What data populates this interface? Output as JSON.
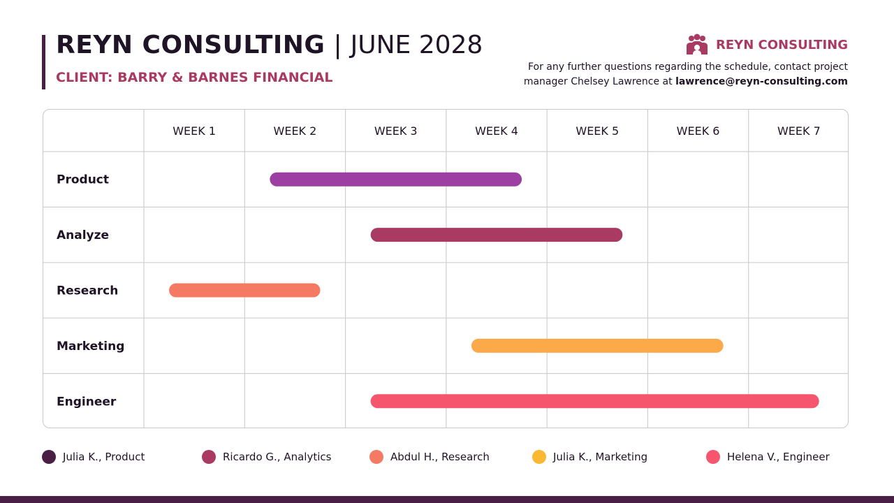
{
  "header": {
    "company": "REYN CONSULTING",
    "separator": "|",
    "date": "JUNE 2028",
    "client": "CLIENT: BARRY & BARNES FINANCIAL",
    "logo_text": "REYN CONSULTING",
    "contact_text": "For any further questions regarding the schedule, contact project manager Chelsey Lawrence at ",
    "contact_email": "lawrence@reyn-consulting.com"
  },
  "colors": {
    "primary_dark": "#4a1f46",
    "accent": "#a93b63",
    "grid_line": "#cfcfcf",
    "text": "#1f1326"
  },
  "chart_data": {
    "type": "gantt",
    "columns": [
      "WEEK 1",
      "WEEK 2",
      "WEEK 3",
      "WEEK 4",
      "WEEK 5",
      "WEEK 6",
      "WEEK 7"
    ],
    "tasks": [
      {
        "label": "Product",
        "start": 2.25,
        "end": 4.75,
        "color": "#9c3ea2"
      },
      {
        "label": "Analyze",
        "start": 3.25,
        "end": 5.75,
        "color": "#a93b63"
      },
      {
        "label": "Research",
        "start": 1.25,
        "end": 2.75,
        "color": "#f47a63"
      },
      {
        "label": "Marketing",
        "start": 4.25,
        "end": 6.75,
        "color": "#fca94a"
      },
      {
        "label": "Engineer",
        "start": 3.25,
        "end": 7.7,
        "color": "#f5566e"
      }
    ]
  },
  "legend": [
    {
      "label": "Julia K., Product",
      "color": "#4a1f46"
    },
    {
      "label": "Ricardo G., Analytics",
      "color": "#a93b63"
    },
    {
      "label": "Abdul H., Research",
      "color": "#f47a63"
    },
    {
      "label": "Julia K., Marketing",
      "color": "#fbb832"
    },
    {
      "label": "Helena V., Engineer",
      "color": "#f5566e"
    }
  ]
}
